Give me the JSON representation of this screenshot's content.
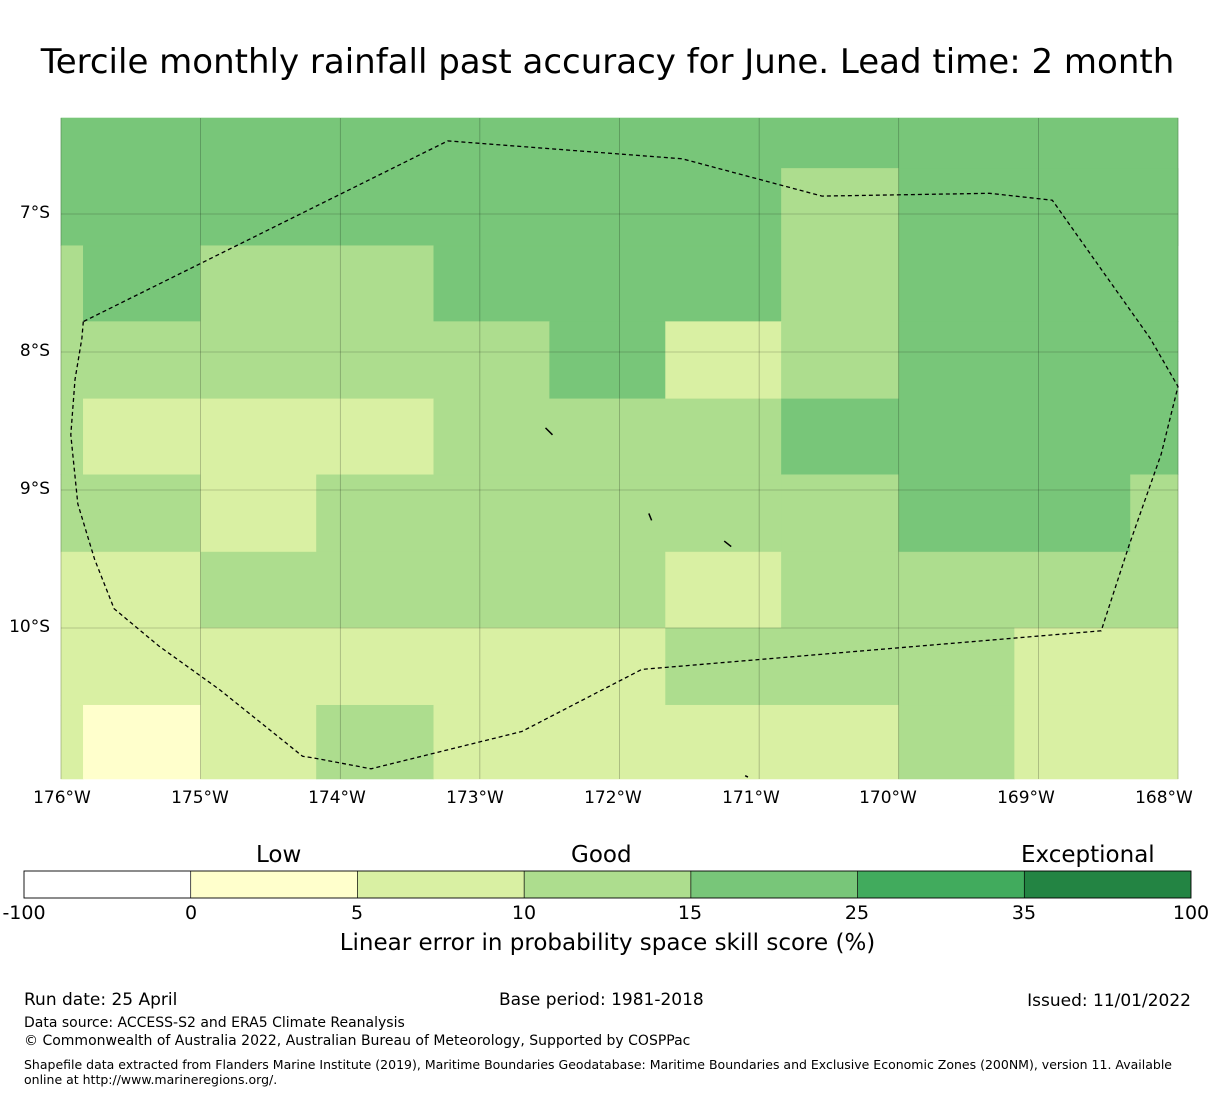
{
  "title": "Tercile monthly rainfall past accuracy for June. Lead time: 2 month",
  "map": {
    "lat_ticks": [
      "7°S",
      "8°S",
      "9°S",
      "10°S"
    ],
    "lon_ticks": [
      "176°W",
      "175°W",
      "174°W",
      "173°W",
      "172°W",
      "171°W",
      "170°W",
      "169°W",
      "168°W"
    ],
    "lon_range": [
      -176,
      -168
    ],
    "lat_range": [
      -11.1,
      -6.3
    ],
    "colors": {
      "c0_5": "#ffffcc",
      "c5_10": "#d9f0a3",
      "c10_15": "#addd8e",
      "c15_25": "#78c679",
      "eez_boundary": "#000000"
    },
    "boundary_style": "dashed",
    "skill_regions": [
      {
        "class": "15-25",
        "lon": [
          -176,
          -168
        ],
        "lat": [
          -6.3,
          -7.23
        ]
      },
      {
        "class": "10-15",
        "lon": [
          -176,
          -175.84
        ],
        "lat": [
          -7.23,
          -7.78
        ]
      },
      {
        "class": "15-25",
        "lon": [
          -175.84,
          -175
        ],
        "lat": [
          -7.23,
          -7.78
        ]
      },
      {
        "class": "10-15",
        "lon": [
          -175,
          -173.33
        ],
        "lat": [
          -7.23,
          -7.78
        ]
      },
      {
        "class": "15-25",
        "lon": [
          -173.33,
          -170.84
        ],
        "lat": [
          -7.23,
          -7.78
        ]
      },
      {
        "class": "10-15",
        "lon": [
          -170.84,
          -170
        ],
        "lat": [
          -6.67,
          -7.78
        ]
      },
      {
        "class": "15-25",
        "lon": [
          -170,
          -168
        ],
        "lat": [
          -6.67,
          -7.78
        ]
      },
      {
        "class": "10-15",
        "lon": [
          -176,
          -172.5
        ],
        "lat": [
          -7.78,
          -8.34
        ]
      },
      {
        "class": "15-25",
        "lon": [
          -172.5,
          -171.67
        ],
        "lat": [
          -7.78,
          -8.34
        ]
      },
      {
        "class": "5-10",
        "lon": [
          -171.67,
          -170.84
        ],
        "lat": [
          -7.78,
          -8.34
        ]
      },
      {
        "class": "10-15",
        "lon": [
          -170.84,
          -170
        ],
        "lat": [
          -7.78,
          -8.34
        ]
      },
      {
        "class": "15-25",
        "lon": [
          -170,
          -168
        ],
        "lat": [
          -7.78,
          -8.34
        ]
      },
      {
        "class": "10-15",
        "lon": [
          -176,
          -175.84
        ],
        "lat": [
          -8.34,
          -8.89
        ]
      },
      {
        "class": "5-10",
        "lon": [
          -175.84,
          -173.33
        ],
        "lat": [
          -8.34,
          -8.89
        ]
      },
      {
        "class": "10-15",
        "lon": [
          -173.33,
          -170.84
        ],
        "lat": [
          -8.34,
          -8.89
        ]
      },
      {
        "class": "15-25",
        "lon": [
          -170.84,
          -168
        ],
        "lat": [
          -8.34,
          -8.89
        ]
      },
      {
        "class": "10-15",
        "lon": [
          -176,
          -175
        ],
        "lat": [
          -8.89,
          -9.45
        ]
      },
      {
        "class": "5-10",
        "lon": [
          -175,
          -174.17
        ],
        "lat": [
          -8.89,
          -9.45
        ]
      },
      {
        "class": "10-15",
        "lon": [
          -174.17,
          -170.84
        ],
        "lat": [
          -8.89,
          -9.45
        ]
      },
      {
        "class": "10-15",
        "lon": [
          -170.84,
          -170
        ],
        "lat": [
          -8.89,
          -9.45
        ]
      },
      {
        "class": "15-25",
        "lon": [
          -170,
          -168.34
        ],
        "lat": [
          -8.89,
          -9.45
        ]
      },
      {
        "class": "10-15",
        "lon": [
          -168.34,
          -168
        ],
        "lat": [
          -8.89,
          -9.45
        ]
      },
      {
        "class": "5-10",
        "lon": [
          -176,
          -175
        ],
        "lat": [
          -9.45,
          -10
        ]
      },
      {
        "class": "10-15",
        "lon": [
          -175,
          -171.67
        ],
        "lat": [
          -9.45,
          -10
        ]
      },
      {
        "class": "5-10",
        "lon": [
          -171.67,
          -170.84
        ],
        "lat": [
          -9.45,
          -10
        ]
      },
      {
        "class": "10-15",
        "lon": [
          -170.84,
          -168
        ],
        "lat": [
          -9.45,
          -10
        ]
      },
      {
        "class": "5-10",
        "lon": [
          -176,
          -171.67
        ],
        "lat": [
          -10,
          -10.56
        ]
      },
      {
        "class": "10-15",
        "lon": [
          -171.67,
          -169.17
        ],
        "lat": [
          -10,
          -10.56
        ]
      },
      {
        "class": "5-10",
        "lon": [
          -169.17,
          -168
        ],
        "lat": [
          -10,
          -10.56
        ]
      },
      {
        "class": "5-10",
        "lon": [
          -176,
          -175.84
        ],
        "lat": [
          -10.56,
          -11.1
        ]
      },
      {
        "class": "0-5",
        "lon": [
          -175.84,
          -175
        ],
        "lat": [
          -10.56,
          -11.1
        ]
      },
      {
        "class": "5-10",
        "lon": [
          -175,
          -174.17
        ],
        "lat": [
          -10.56,
          -11.1
        ]
      },
      {
        "class": "10-15",
        "lon": [
          -174.17,
          -173.33
        ],
        "lat": [
          -10.56,
          -11.1
        ]
      },
      {
        "class": "5-10",
        "lon": [
          -173.33,
          -170
        ],
        "lat": [
          -10.56,
          -11.1
        ]
      },
      {
        "class": "10-15",
        "lon": [
          -170,
          -169.17
        ],
        "lat": [
          -10.56,
          -11.1
        ]
      },
      {
        "class": "5-10",
        "lon": [
          -169.17,
          -168
        ],
        "lat": [
          -10.56,
          -11.1
        ]
      }
    ],
    "eez_boundary": [
      [
        -175.84,
        -7.78
      ],
      [
        -175.85,
        -7.9
      ],
      [
        -175.9,
        -8.2
      ],
      [
        -175.93,
        -8.6
      ],
      [
        -175.88,
        -9.1
      ],
      [
        -175.76,
        -9.5
      ],
      [
        -175.62,
        -9.86
      ],
      [
        -175.3,
        -10.13
      ],
      [
        -174.86,
        -10.45
      ],
      [
        -174.27,
        -10.93
      ],
      [
        -174.2,
        -10.94
      ],
      [
        -173.78,
        -11.02
      ],
      [
        -172.7,
        -10.75
      ],
      [
        -171.84,
        -10.3
      ],
      [
        -168.55,
        -10.02
      ],
      [
        -168.35,
        -9.4
      ],
      [
        -168.12,
        -8.74
      ],
      [
        -168,
        -8.25
      ],
      [
        -168.2,
        -7.9
      ],
      [
        -168.55,
        -7.4
      ],
      [
        -168.9,
        -6.9
      ],
      [
        -169.35,
        -6.85
      ],
      [
        -170.55,
        -6.87
      ],
      [
        -171.55,
        -6.6
      ],
      [
        -173.23,
        -6.47
      ],
      [
        -175.84,
        -7.78
      ]
    ],
    "islands": [
      [
        [
          -172.53,
          -8.55
        ],
        [
          -172.48,
          -8.6
        ]
      ],
      [
        [
          -171.79,
          -9.17
        ],
        [
          -171.77,
          -9.22
        ]
      ],
      [
        [
          -171.25,
          -9.37
        ],
        [
          -171.2,
          -9.41
        ]
      ],
      [
        [
          -171.1,
          -11.07
        ],
        [
          -171.08,
          -11.08
        ]
      ]
    ]
  },
  "colorbar": {
    "categories": [
      "Low",
      "Good",
      "Exceptional"
    ],
    "ticks": [
      "-100",
      "0",
      "5",
      "10",
      "15",
      "25",
      "35",
      "100"
    ],
    "colors": [
      "#ffffff",
      "#ffffcc",
      "#d9f0a3",
      "#addd8e",
      "#78c679",
      "#41ab5d",
      "#238443"
    ],
    "label": "Linear error in probability space skill score (%)"
  },
  "footer": {
    "run_date": "Run date: 25 April",
    "base_period": "Base period: 1981-2018",
    "issued": "Issued: 11/01/2022",
    "data_source": "Data source: ACCESS-S2 and ERA5 Climate Reanalysis",
    "copyright": "© Commonwealth of Australia 2022, Australian Bureau of Meteorology, Supported by COSPPac",
    "shapefile_note": "Shapefile data extracted from Flanders Marine Institute (2019), Maritime Boundaries Geodatabase: Maritime Boundaries and Exclusive Economic Zones (200NM), version 11. Available online at http://www.marineregions.org/."
  }
}
